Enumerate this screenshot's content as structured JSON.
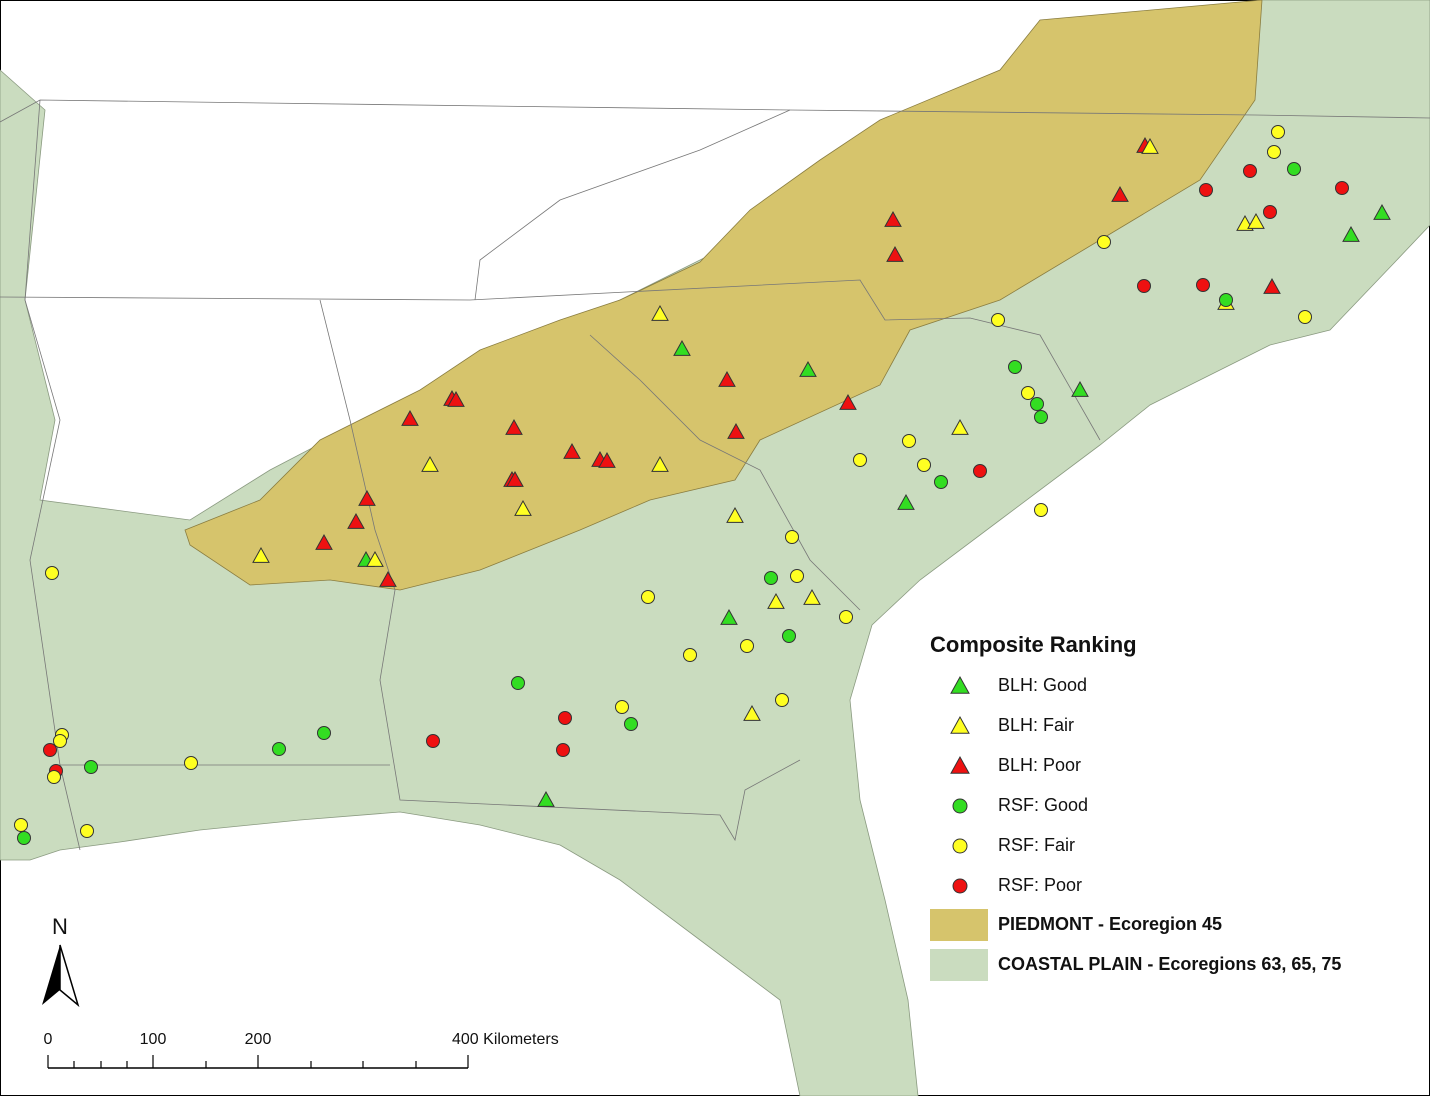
{
  "legend": {
    "title": "Composite Ranking",
    "items": [
      {
        "label": "BLH: Good"
      },
      {
        "label": "BLH: Fair"
      },
      {
        "label": "BLH: Poor"
      },
      {
        "label": "RSF: Good"
      },
      {
        "label": "RSF: Fair"
      },
      {
        "label": "RSF: Poor"
      }
    ],
    "regions": [
      {
        "label": "PIEDMONT - Ecoregion 45"
      },
      {
        "label": "COASTAL PLAIN - Ecoregions 63, 65, 75"
      }
    ]
  },
  "north_arrow": {
    "label": "N"
  },
  "scale_bar": {
    "labels": [
      "0",
      "100",
      "200",
      "400 Kilometers"
    ]
  }
}
